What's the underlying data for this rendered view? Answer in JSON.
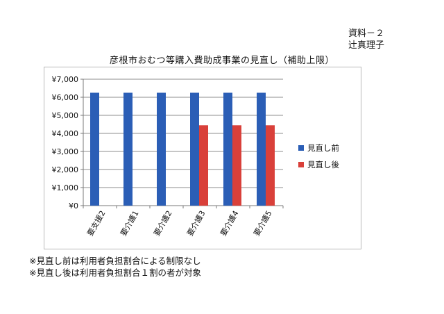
{
  "document": {
    "ref_label": "資料－２",
    "author": "辻真理子"
  },
  "notes": [
    "※見直し前は利用者負担割合による制限なし",
    "※見直し後は利用者負担割合１割の者が対象"
  ],
  "colors": {
    "before": "#2b5eb6",
    "after": "#d9403a",
    "grid": "#8c8c8c",
    "axis": "#7a7a7a"
  },
  "chart_data": {
    "type": "bar",
    "title": "彦根市おむつ等購入費助成事業の見直し（補助上限）",
    "categories": [
      "要支援2",
      "要介護1",
      "要介護2",
      "要介護3",
      "要介護4",
      "要介護5"
    ],
    "series": [
      {
        "name": "見直し前",
        "values": [
          6250,
          6250,
          6250,
          6250,
          6250,
          6250
        ]
      },
      {
        "name": "見直し後",
        "values": [
          null,
          null,
          null,
          4450,
          4450,
          4450
        ]
      }
    ],
    "yticks": [
      "¥0",
      "¥1,000",
      "¥2,000",
      "¥3,000",
      "¥4,000",
      "¥5,000",
      "¥6,000",
      "¥7,000"
    ],
    "ylim": [
      0,
      7000
    ],
    "xlabel": "",
    "ylabel": "",
    "grid": true,
    "legend_position": "right"
  }
}
